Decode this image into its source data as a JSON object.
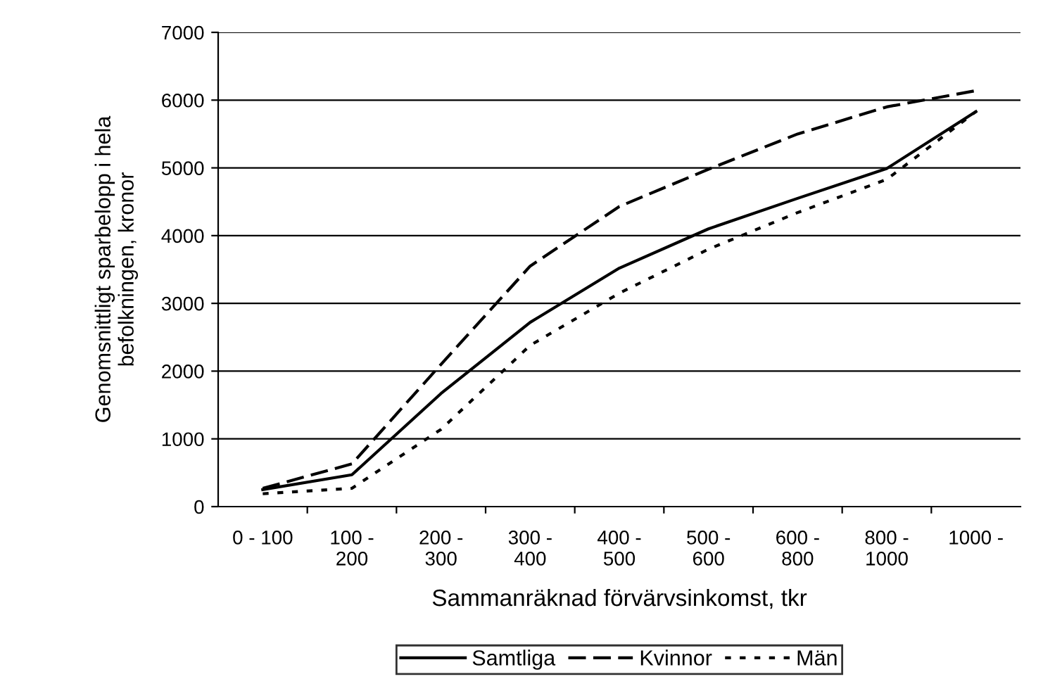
{
  "chart_data": {
    "type": "line",
    "xlabel": "Sammanräknad förvärvsinkomst, tkr",
    "ylabel": "Genomsnittligt sparbelopp i hela\nbefolkningen, kronor",
    "categories": [
      "0 - 100",
      "100 -\n200",
      "200 -\n300",
      "300 -\n400",
      "400 -\n500",
      "500 -\n600",
      "600 -\n800",
      "800 -\n1000",
      "1000 -"
    ],
    "series": [
      {
        "name": "Samtliga",
        "color": "#000000",
        "line_style": "solid",
        "values": [
          250,
          470,
          1670,
          2720,
          3520,
          4100,
          4550,
          4990,
          5830
        ]
      },
      {
        "name": "Kvinnor",
        "color": "#000000",
        "line_style": "dashed",
        "values": [
          270,
          630,
          2100,
          3550,
          4430,
          4980,
          5500,
          5900,
          6140
        ]
      },
      {
        "name": "Män",
        "color": "#000000",
        "line_style": "dotted",
        "values": [
          190,
          270,
          1140,
          2380,
          3150,
          3800,
          4340,
          4830,
          5830
        ]
      }
    ],
    "ylim": [
      0,
      7000
    ],
    "yticks": [
      0,
      1000,
      2000,
      3000,
      4000,
      5000,
      6000,
      7000
    ],
    "grid": "y",
    "legend": "bottom",
    "marker": "none"
  }
}
